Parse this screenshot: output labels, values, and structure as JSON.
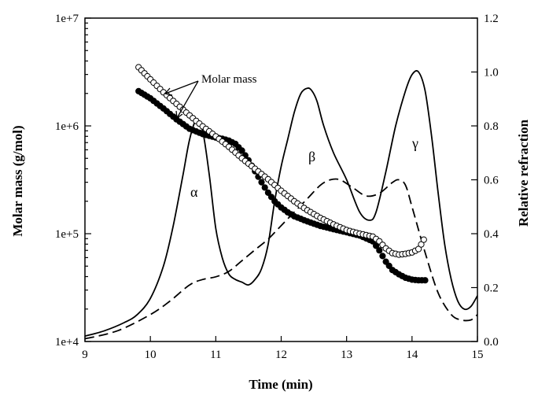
{
  "chart_data": {
    "type": "line",
    "title": "",
    "xlabel": "Time (min)",
    "ylabel": "Molar mass (g/mol)",
    "y2label": "Relative refraction",
    "xlim": [
      9,
      15
    ],
    "ylim": [
      10000,
      10000000
    ],
    "y_scale": "log",
    "y2lim": [
      0.0,
      1.2
    ],
    "grid": false,
    "x_ticks": [
      "9",
      "10",
      "11",
      "12",
      "13",
      "14",
      "15"
    ],
    "y_ticks": [
      "1e+4",
      "1e+5",
      "1e+6",
      "1e+7"
    ],
    "y2_ticks": [
      "0.0",
      "0.2",
      "0.4",
      "0.6",
      "0.8",
      "1.0",
      "1.2"
    ],
    "annotations": {
      "molar_mass": "Molar mass",
      "alpha": "α",
      "beta": "β",
      "gamma": "γ"
    },
    "series": [
      {
        "style": "solid line",
        "axis": "right",
        "x": [
          9.0,
          9.3,
          9.6,
          9.8,
          10.0,
          10.2,
          10.35,
          10.5,
          10.6,
          10.7,
          10.8,
          10.9,
          11.0,
          11.1,
          11.2,
          11.3,
          11.4,
          11.5,
          11.6,
          11.7,
          11.8,
          11.9,
          12.0,
          12.1,
          12.2,
          12.3,
          12.4,
          12.47,
          12.55,
          12.65,
          12.8,
          13.0,
          13.2,
          13.35,
          13.45,
          13.6,
          13.75,
          13.9,
          14.0,
          14.1,
          14.2,
          14.3,
          14.4,
          14.5,
          14.6,
          14.7,
          14.8,
          14.9,
          15.0
        ],
        "y": [
          0.02,
          0.04,
          0.07,
          0.1,
          0.16,
          0.28,
          0.43,
          0.62,
          0.75,
          0.82,
          0.78,
          0.62,
          0.42,
          0.31,
          0.25,
          0.23,
          0.22,
          0.21,
          0.23,
          0.27,
          0.36,
          0.52,
          0.65,
          0.75,
          0.85,
          0.92,
          0.94,
          0.93,
          0.89,
          0.8,
          0.7,
          0.6,
          0.48,
          0.45,
          0.48,
          0.63,
          0.8,
          0.93,
          0.99,
          1.0,
          0.93,
          0.76,
          0.55,
          0.36,
          0.23,
          0.15,
          0.12,
          0.13,
          0.17
        ]
      },
      {
        "style": "dashed line",
        "axis": "right",
        "x": [
          9.0,
          9.5,
          10.0,
          10.3,
          10.6,
          10.8,
          11.0,
          11.2,
          11.4,
          11.6,
          11.8,
          12.0,
          12.2,
          12.4,
          12.6,
          12.75,
          12.9,
          13.1,
          13.3,
          13.5,
          13.7,
          13.8,
          13.9,
          14.0,
          14.2,
          14.4,
          14.6,
          14.75,
          14.9,
          15.0
        ],
        "y": [
          0.01,
          0.04,
          0.1,
          0.15,
          0.21,
          0.23,
          0.24,
          0.26,
          0.3,
          0.34,
          0.38,
          0.43,
          0.48,
          0.53,
          0.58,
          0.6,
          0.6,
          0.57,
          0.54,
          0.55,
          0.59,
          0.6,
          0.58,
          0.5,
          0.33,
          0.18,
          0.1,
          0.08,
          0.08,
          0.1
        ]
      },
      {
        "style": "filled circles",
        "axis": "left",
        "x": [
          9.82,
          10.0,
          10.2,
          10.4,
          10.6,
          10.8,
          11.0,
          11.1,
          11.2,
          11.3,
          11.4,
          11.5,
          11.6,
          11.7,
          11.8,
          11.9,
          12.0,
          12.1,
          12.2,
          12.4,
          12.6,
          12.8,
          13.0,
          13.2,
          13.4,
          13.5,
          13.6,
          13.7,
          13.8,
          13.9,
          14.0,
          14.1,
          14.2
        ],
        "y": [
          2100000,
          1800000,
          1450000,
          1150000,
          940000,
          840000,
          780000,
          760000,
          730000,
          680000,
          590000,
          480000,
          380000,
          300000,
          240000,
          200000,
          175000,
          158000,
          145000,
          130000,
          118000,
          110000,
          103000,
          96000,
          85000,
          70000,
          55000,
          46000,
          42000,
          39000,
          37500,
          37000,
          37000
        ]
      },
      {
        "style": "open circles",
        "axis": "left",
        "x": [
          9.82,
          10.0,
          10.2,
          10.4,
          10.6,
          10.8,
          11.0,
          11.2,
          11.4,
          11.6,
          11.8,
          12.0,
          12.2,
          12.4,
          12.6,
          12.8,
          13.0,
          13.2,
          13.4,
          13.5,
          13.6,
          13.7,
          13.8,
          13.9,
          14.0,
          14.1,
          14.18
        ],
        "y": [
          3500000,
          2700000,
          2050000,
          1600000,
          1250000,
          990000,
          800000,
          640000,
          500000,
          400000,
          320000,
          250000,
          200000,
          165000,
          140000,
          122000,
          108000,
          100000,
          94000,
          85000,
          73000,
          66000,
          64000,
          65000,
          67000,
          72000,
          88000
        ]
      }
    ]
  }
}
